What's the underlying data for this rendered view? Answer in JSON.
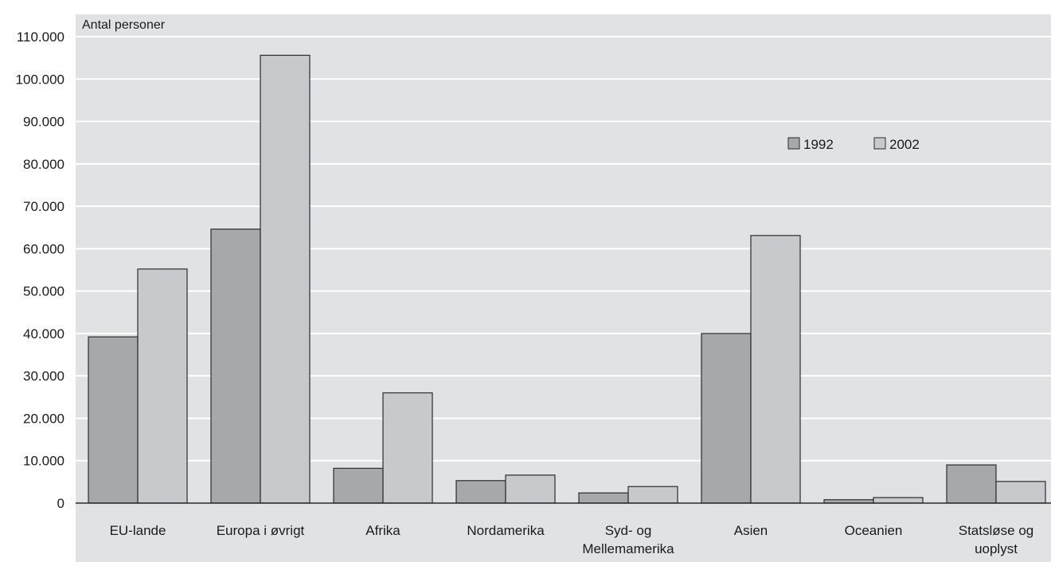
{
  "chart_data": {
    "type": "bar",
    "title": "",
    "ylabel": "Antal personer",
    "xlabel": "",
    "categories": [
      "EU-lande",
      "Europa i øvrigt",
      "Afrika",
      "Nordamerika",
      "Syd- og Mellemamerika",
      "Asien",
      "Oceanien",
      "Statsløse og uoplyst"
    ],
    "category_lines": [
      [
        "EU-lande"
      ],
      [
        "Europa i øvrigt"
      ],
      [
        "Afrika"
      ],
      [
        "Nordamerika"
      ],
      [
        "Syd- og",
        "Mellemamerika"
      ],
      [
        "Asien"
      ],
      [
        "Oceanien"
      ],
      [
        "Statsløse og",
        "uoplyst"
      ]
    ],
    "series": [
      {
        "name": "1992",
        "color": "#a7a8ab",
        "values": [
          39200,
          64600,
          8200,
          5300,
          2400,
          40000,
          800,
          9000
        ]
      },
      {
        "name": "2002",
        "color": "#c8c9cc",
        "values": [
          55200,
          105600,
          26000,
          6600,
          3900,
          63100,
          1300,
          5100
        ]
      }
    ],
    "ylim": [
      0,
      110000
    ],
    "yticks": [
      {
        "value": 0,
        "label": "0"
      },
      {
        "value": 10000,
        "label": "10.000"
      },
      {
        "value": 20000,
        "label": "20.000"
      },
      {
        "value": 30000,
        "label": "30.000"
      },
      {
        "value": 40000,
        "label": "40.000"
      },
      {
        "value": 50000,
        "label": "50.000"
      },
      {
        "value": 60000,
        "label": "60.000"
      },
      {
        "value": 70000,
        "label": "70.000"
      },
      {
        "value": 80000,
        "label": "80.000"
      },
      {
        "value": 90000,
        "label": "90.000"
      },
      {
        "value": 100000,
        "label": "100.000"
      },
      {
        "value": 110000,
        "label": "110.000"
      }
    ],
    "grid": true,
    "legend_position": "upper-right",
    "colors": {
      "plot_background": "#e1e2e4",
      "gridline": "#ffffff",
      "bar_stroke": "#2b2b2b"
    }
  }
}
